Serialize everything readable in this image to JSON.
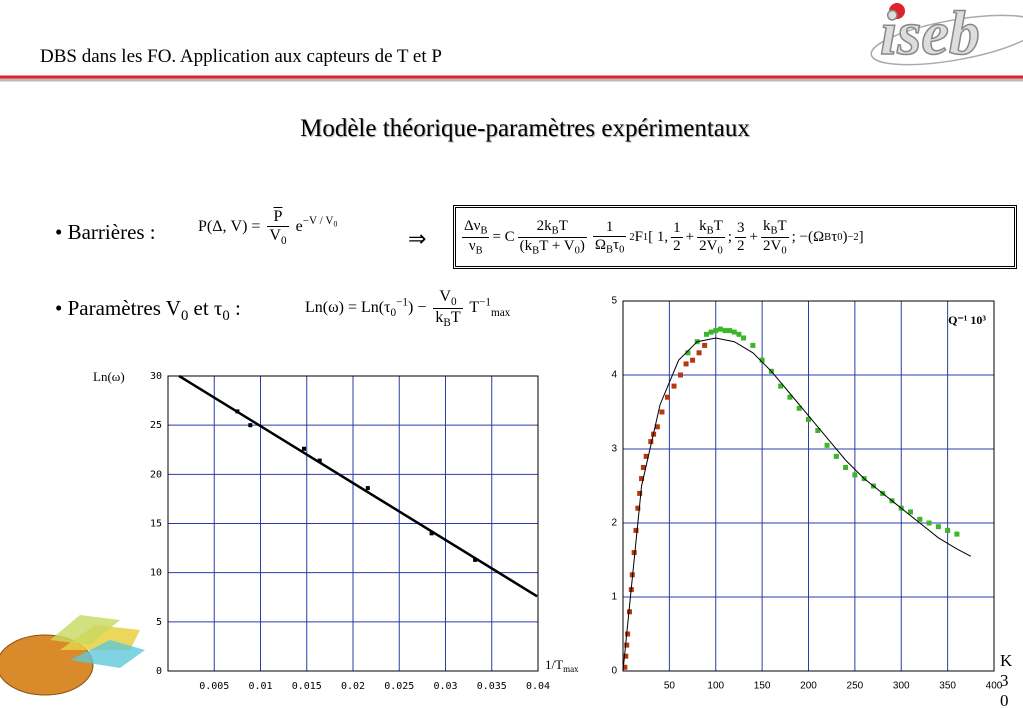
{
  "header": {
    "title": "DBS dans les FO. Application aux capteurs de T et P",
    "logo": "iseb"
  },
  "slide_title": "Modèle théorique-paramètres expérimentaux",
  "bullets": [
    {
      "label": [
        "• Barrières :"
      ],
      "formula": [
        "P(Δ, V) = ",
        {
          "frac": [
            [
              {
                "over": [
                  "P"
                ]
              }
            ],
            [
              "V",
              {
                "sub": [
                  "0"
                ]
              }
            ]
          ]
        },
        " e",
        {
          "sup": [
            "−V / V",
            {
              "sub": [
                "0"
              ]
            }
          ]
        }
      ]
    },
    {
      "label": [
        "• Paramètres V",
        {
          "sub": [
            "0"
          ]
        },
        " et τ",
        {
          "sub": [
            "0"
          ]
        },
        " :"
      ],
      "formula": [
        "Ln(ω) = Ln(τ",
        {
          "sub": [
            "0"
          ]
        },
        {
          "sup": [
            "−1"
          ]
        },
        ") − ",
        {
          "frac": [
            [
              "V",
              {
                "sub": [
                  "0"
                ]
              }
            ],
            [
              "k",
              {
                "sub": [
                  "B"
                ]
              },
              "T"
            ]
          ]
        },
        " T",
        {
          "sup": [
            "−1"
          ]
        },
        {
          "sub": [
            "max"
          ]
        }
      ]
    }
  ],
  "arrow": "⇒",
  "boxed_formula": [
    {
      "frac": [
        [
          "Δν",
          {
            "sub": [
              "B"
            ]
          }
        ],
        [
          "ν",
          {
            "sub": [
              "B"
            ]
          }
        ]
      ]
    },
    " = C",
    {
      "frac": [
        [
          "2k",
          {
            "sub": [
              "B"
            ]
          },
          "T"
        ],
        [
          "(k",
          {
            "sub": [
              "B"
            ]
          },
          "T + V",
          {
            "sub": [
              "0"
            ]
          },
          ")"
        ]
      ]
    },
    {
      "frac": [
        [
          "1"
        ],
        [
          "Ω",
          {
            "sub": [
              "B"
            ]
          },
          "τ",
          {
            "sub": [
              "0"
            ]
          }
        ]
      ]
    },
    {
      "sub": [
        "2"
      ]
    },
    "F",
    {
      "sub": [
        "1"
      ]
    },
    " [ 1, ",
    {
      "frac": [
        [
          "1"
        ],
        [
          "2"
        ]
      ]
    },
    " + ",
    {
      "frac": [
        [
          "k",
          {
            "sub": [
              "B"
            ]
          },
          "T"
        ],
        [
          "2V",
          {
            "sub": [
              "0"
            ]
          }
        ]
      ]
    },
    " ; ",
    {
      "frac": [
        [
          "3"
        ],
        [
          "2"
        ]
      ]
    },
    " + ",
    {
      "frac": [
        [
          "k",
          {
            "sub": [
              "B"
            ]
          },
          "T"
        ],
        [
          "2V",
          {
            "sub": [
              "0"
            ]
          }
        ]
      ]
    },
    " ; −(Ω",
    {
      "sub": [
        "B"
      ]
    },
    "τ",
    {
      "sub": [
        "0"
      ]
    },
    ")",
    {
      "sup": [
        "−2"
      ]
    },
    " ]"
  ],
  "page_number": "30",
  "chart_data": [
    {
      "type": "scatter",
      "y_label": "Ln(ω)",
      "x_label": "1/T",
      "x_label_sub": "max",
      "xlim": [
        0,
        0.04
      ],
      "ylim": [
        0,
        30
      ],
      "xticks": [
        0.005,
        0.01,
        0.015,
        0.02,
        0.025,
        0.03,
        0.035,
        0.04
      ],
      "yticks": [
        0,
        5,
        10,
        15,
        20,
        25,
        30
      ],
      "grid": true,
      "series": [
        {
          "type": "scatter",
          "color": "#000000",
          "x": [
            0.0075,
            0.0089,
            0.0147,
            0.0164,
            0.0216,
            0.0285,
            0.0332
          ],
          "values": [
            26.4,
            25.0,
            22.6,
            21.4,
            18.6,
            14.0,
            11.3
          ]
        },
        {
          "type": "line",
          "color": "#000000",
          "x": [
            0.0012,
            0.0399
          ],
          "values": [
            30,
            7.6
          ]
        }
      ]
    },
    {
      "type": "scatter",
      "annotation": "Q⁻¹ 10³",
      "x_label": "K",
      "xlim": [
        0,
        400
      ],
      "ylim": [
        0,
        5
      ],
      "xticks": [
        50,
        100,
        150,
        200,
        250,
        300,
        350,
        400
      ],
      "yticks": [
        0,
        1,
        2,
        3,
        4,
        5
      ],
      "grid": true,
      "series": [
        {
          "type": "scatter",
          "color": "#b5380f",
          "x": [
            2,
            3,
            4,
            5,
            7,
            9,
            10,
            12,
            14,
            16,
            18,
            20,
            22,
            25,
            30,
            33,
            37,
            42,
            48,
            55,
            62,
            68,
            75,
            82,
            88
          ],
          "values": [
            0.05,
            0.2,
            0.35,
            0.5,
            0.8,
            1.1,
            1.3,
            1.6,
            1.9,
            2.2,
            2.4,
            2.6,
            2.75,
            2.9,
            3.1,
            3.2,
            3.3,
            3.5,
            3.7,
            3.85,
            4.0,
            4.15,
            4.2,
            4.3,
            4.4
          ]
        },
        {
          "type": "scatter",
          "color": "#3db52a",
          "x": [
            70,
            80,
            90,
            95,
            100,
            105,
            110,
            115,
            120,
            125,
            130,
            140,
            150,
            160,
            170,
            180,
            190,
            200,
            210,
            220,
            230,
            240,
            250,
            260,
            270,
            280,
            290,
            300,
            310,
            320,
            330,
            340,
            350,
            360
          ],
          "values": [
            4.3,
            4.45,
            4.55,
            4.58,
            4.6,
            4.62,
            4.6,
            4.6,
            4.58,
            4.55,
            4.5,
            4.4,
            4.2,
            4.05,
            3.85,
            3.7,
            3.55,
            3.4,
            3.25,
            3.05,
            2.9,
            2.75,
            2.65,
            2.6,
            2.5,
            2.4,
            2.3,
            2.2,
            2.15,
            2.05,
            2.0,
            1.95,
            1.9,
            1.85
          ]
        },
        {
          "type": "line",
          "color": "#000000",
          "x": [
            0,
            20,
            40,
            60,
            80,
            100,
            120,
            140,
            160,
            180,
            200,
            220,
            240,
            260,
            280,
            300,
            320,
            340,
            360,
            375
          ],
          "values": [
            0,
            2.5,
            3.6,
            4.2,
            4.45,
            4.5,
            4.45,
            4.3,
            4.05,
            3.75,
            3.45,
            3.15,
            2.85,
            2.6,
            2.4,
            2.2,
            2.0,
            1.8,
            1.65,
            1.55
          ]
        }
      ]
    }
  ]
}
